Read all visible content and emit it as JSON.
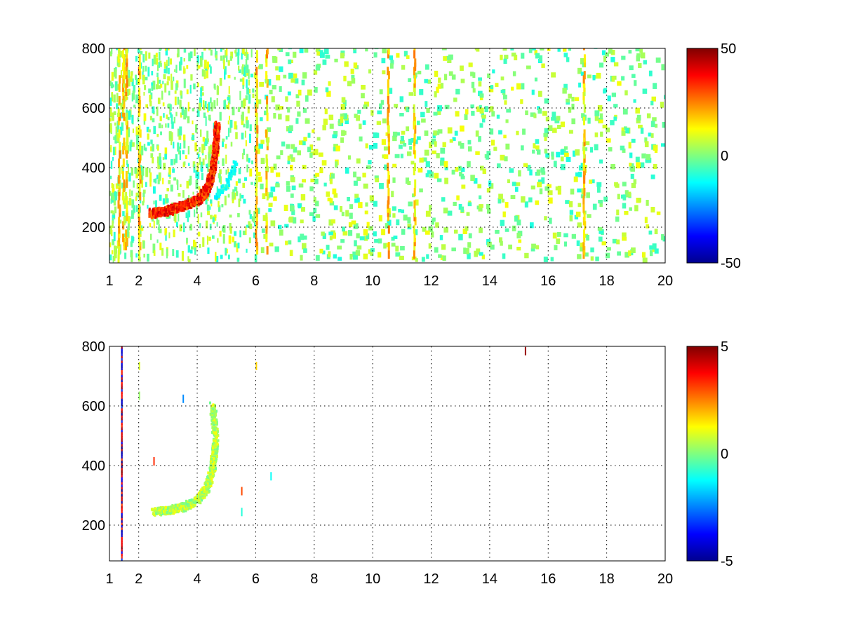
{
  "chart_data": [
    {
      "type": "heatmap",
      "title": "",
      "xlabel": "",
      "ylabel": "",
      "xlim": [
        1,
        20
      ],
      "ylim": [
        80,
        800
      ],
      "xticks": [
        1,
        2,
        4,
        6,
        8,
        10,
        12,
        14,
        16,
        18,
        20
      ],
      "xtick_labels": [
        "1",
        "2",
        "4",
        "6",
        "8",
        "10",
        "12",
        "14",
        "16",
        "18",
        "20"
      ],
      "yticks": [
        200,
        400,
        600,
        800
      ],
      "ytick_labels": [
        "200",
        "400",
        "600",
        "800"
      ],
      "grid": true,
      "colormap": "jet",
      "clim": [
        -50,
        50
      ],
      "colorbar_ticks": [
        -50,
        0,
        50
      ],
      "colorbar_labels": [
        "-50",
        "0",
        "50"
      ],
      "features": {
        "ridge": {
          "description": "curved high-value band",
          "points": [
            [
              2.4,
              240
            ],
            [
              3.0,
              250
            ],
            [
              3.5,
              265
            ],
            [
              4.0,
              285
            ],
            [
              4.3,
              320
            ],
            [
              4.5,
              380
            ],
            [
              4.6,
              460
            ],
            [
              4.65,
              540
            ]
          ],
          "value": 35
        },
        "negative_branch": {
          "points": [
            [
              4.6,
              290
            ],
            [
              5.0,
              340
            ],
            [
              5.3,
              410
            ]
          ],
          "value": -12
        },
        "vertical_stripes_x": [
          1.3,
          1.45,
          1.55,
          2.0,
          6.0,
          6.35,
          10.5,
          11.4,
          17.2
        ]
      }
    },
    {
      "type": "heatmap",
      "title": "",
      "xlabel": "",
      "ylabel": "",
      "xlim": [
        1,
        20
      ],
      "ylim": [
        80,
        800
      ],
      "xticks": [
        1,
        2,
        4,
        6,
        8,
        10,
        12,
        14,
        16,
        18,
        20
      ],
      "xtick_labels": [
        "1",
        "2",
        "4",
        "6",
        "8",
        "10",
        "12",
        "14",
        "16",
        "18",
        "20"
      ],
      "yticks": [
        200,
        400,
        600,
        800
      ],
      "ytick_labels": [
        "200",
        "400",
        "600",
        "800"
      ],
      "grid": true,
      "colormap": "jet",
      "clim": [
        -5,
        5
      ],
      "colorbar_ticks": [
        -5,
        0,
        5
      ],
      "colorbar_labels": [
        "-5",
        "0",
        "5"
      ],
      "features": {
        "ridge": {
          "points": [
            [
              2.5,
              240
            ],
            [
              3.0,
              245
            ],
            [
              3.5,
              255
            ],
            [
              4.0,
              280
            ],
            [
              4.3,
              320
            ],
            [
              4.5,
              380
            ],
            [
              4.6,
              480
            ],
            [
              4.5,
              600
            ]
          ],
          "value": 0.5
        },
        "vertical_line_x": 1.4,
        "scattered_points": [
          [
            2.0,
            720
          ],
          [
            2.0,
            620
          ],
          [
            2.5,
            400
          ],
          [
            3.5,
            610
          ],
          [
            5.5,
            300
          ],
          [
            5.5,
            230
          ],
          [
            6.0,
            720
          ],
          [
            6.5,
            350
          ],
          [
            15.2,
            770
          ]
        ]
      }
    }
  ]
}
